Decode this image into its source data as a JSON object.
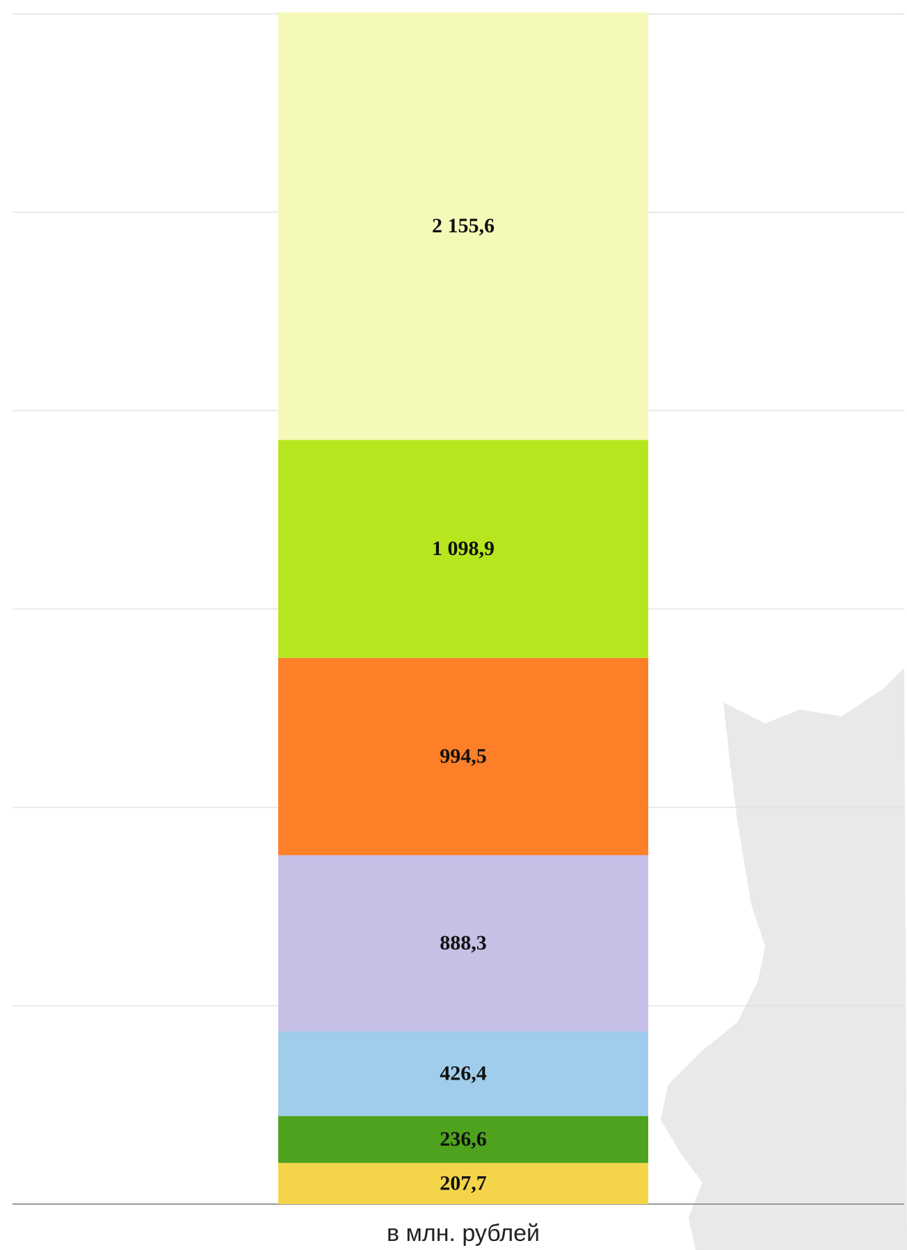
{
  "chart_data": {
    "type": "stacked_bar",
    "categories": [
      "в млн. рублей"
    ],
    "series": [
      {
        "color": "#f4d54a",
        "values": [
          207.7
        ],
        "value_labels": [
          "207,7"
        ]
      },
      {
        "color": "#4ea21e",
        "values": [
          236.6
        ],
        "value_labels": [
          "236,6"
        ]
      },
      {
        "color": "#9fcdeb",
        "values": [
          426.4
        ],
        "value_labels": [
          "426,4"
        ]
      },
      {
        "color": "#c6bfe6",
        "values": [
          888.3
        ],
        "value_labels": [
          "888,3"
        ]
      },
      {
        "color": "#fd7f28",
        "values": [
          994.5
        ],
        "value_labels": [
          "994,5"
        ]
      },
      {
        "color": "#b6e61e",
        "values": [
          1098.9
        ],
        "value_labels": [
          "1 098,9"
        ]
      },
      {
        "color": "#f5f9b8",
        "values": [
          2155.6
        ],
        "value_labels": [
          "2 155,6"
        ]
      }
    ],
    "ylim": [
      0,
      6000
    ],
    "yticks": [
      0,
      1000,
      2000,
      3000,
      4000,
      5000,
      6000
    ],
    "grid": true
  }
}
